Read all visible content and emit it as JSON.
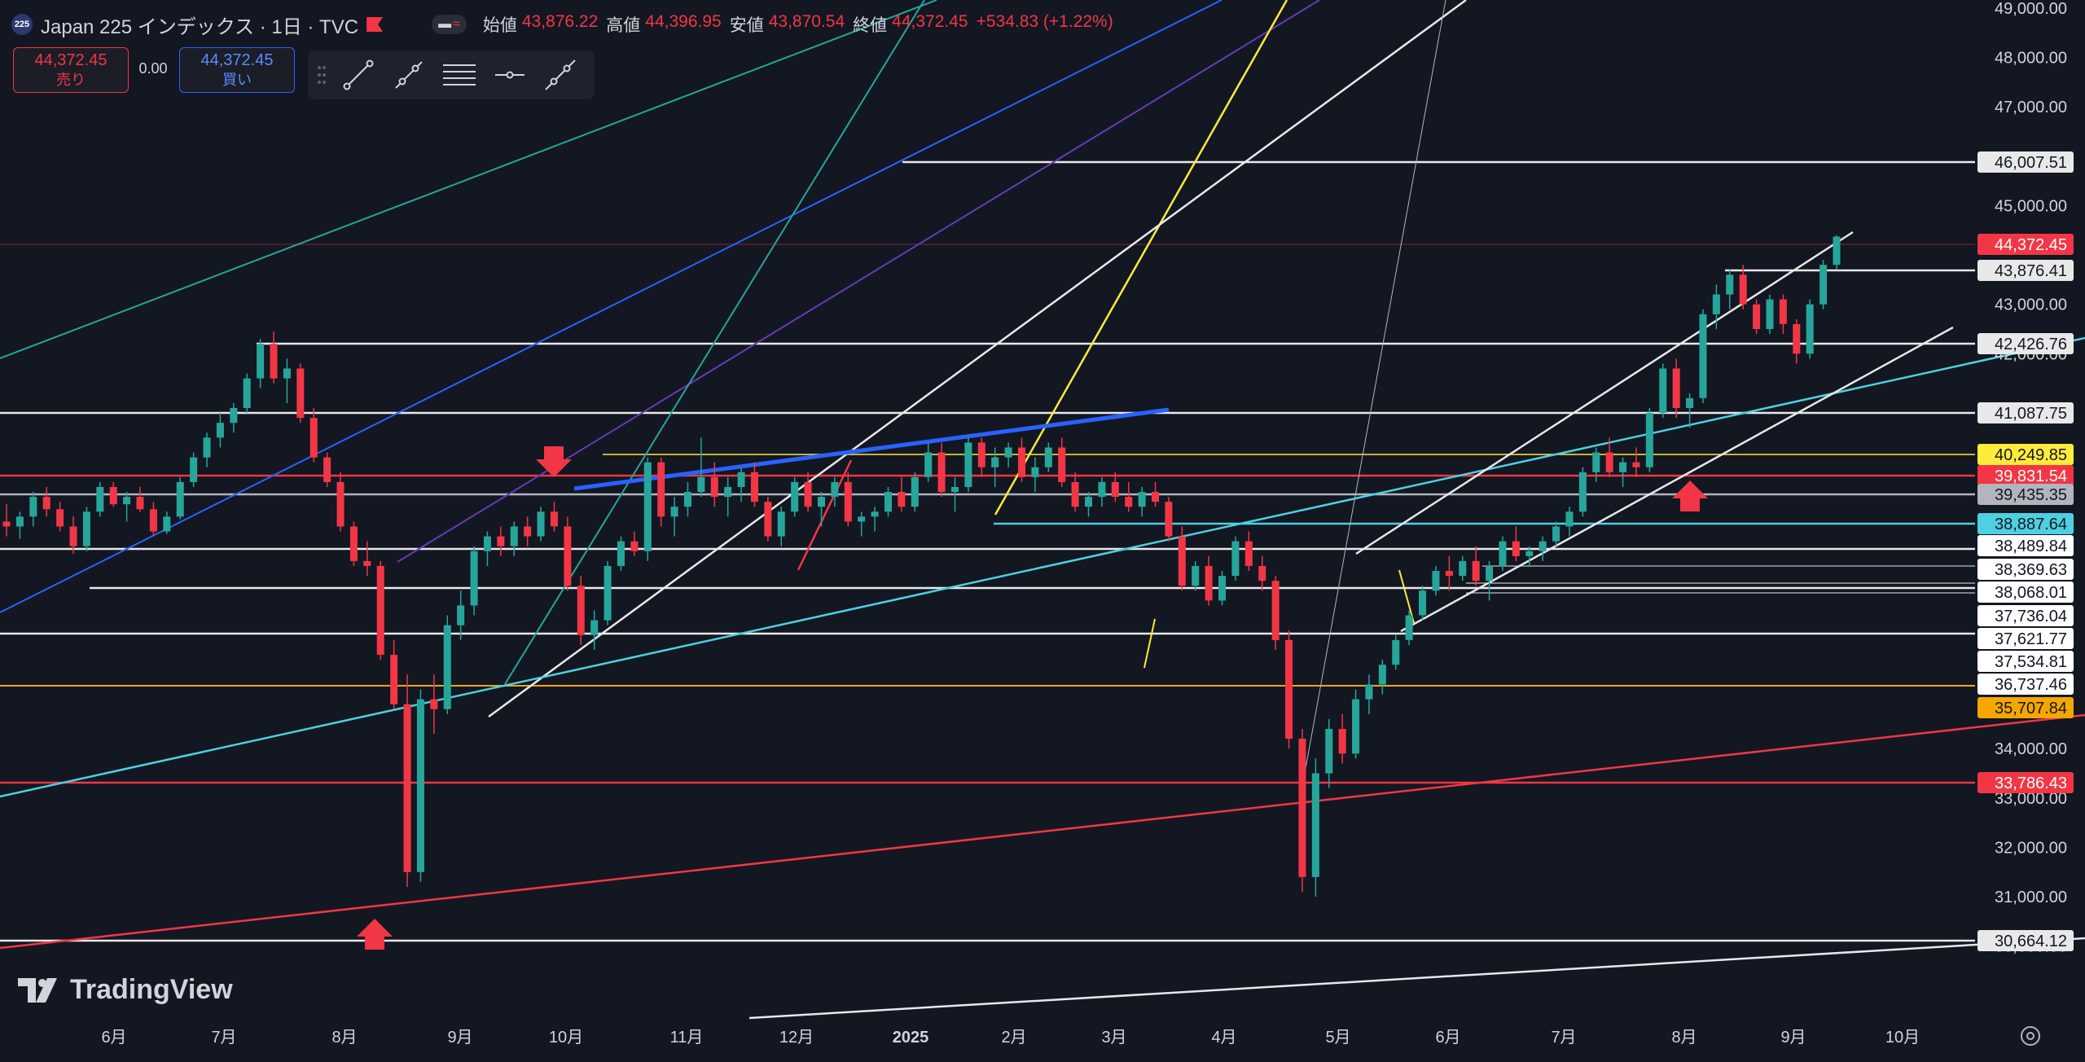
{
  "header": {
    "logo_text": "225",
    "title": "Japan 225 インデックス · 1日 · TVC",
    "ohlc": [
      {
        "label": "始値",
        "value": "43,876.22"
      },
      {
        "label": "高値",
        "value": "44,396.95"
      },
      {
        "label": "安値",
        "value": "43,870.54"
      },
      {
        "label": "終値",
        "value": "44,372.45"
      },
      {
        "label": "",
        "value": "+534.83 (+1.22%)"
      }
    ]
  },
  "trade": {
    "sell_price": "44,372.45",
    "sell_label": "売り",
    "spread": "0.00",
    "buy_price": "44,372.45",
    "buy_label": "買い"
  },
  "toolbar": [
    "trend-line-icon",
    "ray-icon",
    "parallel-channel-icon",
    "horizontal-line-icon",
    "extended-line-icon"
  ],
  "watermark": "TradingView",
  "colors": {
    "background": "#131722",
    "up": "#26a69a",
    "down": "#f23645",
    "white_line": "#e8e8e8",
    "red_line": "#f23645",
    "orange_line": "#f7a600",
    "yellow_line": "#ffeb3b",
    "cyan_line": "#4dd0e1",
    "blue_line": "#2962ff",
    "teal_line": "#26a69a",
    "purple_line": "#673ab7"
  },
  "chart_data": {
    "type": "candlestick",
    "title": "Japan 225 インデックス · 1日 · TVC",
    "x_ticks": [
      "6月",
      "7月",
      "8月",
      "9月",
      "10月",
      "11月",
      "12月",
      "2025",
      "2月",
      "3月",
      "4月",
      "5月",
      "6月",
      "7月",
      "8月",
      "9月",
      "10月"
    ],
    "y_ticks": [
      "49,000.00",
      "48,000.00",
      "47,000.00",
      "45,000.00",
      "43,000.00",
      "42,000.00",
      "34,000.00",
      "33,000.00",
      "32,000.00",
      "31,000.00",
      "30,000.00"
    ],
    "ylim": [
      29500,
      49000
    ],
    "last_price": 44372.45,
    "price_labels": [
      {
        "value": "46,007.51",
        "style": "white"
      },
      {
        "value": "44,372.45",
        "style": "last"
      },
      {
        "value": "43,876.41",
        "style": "white"
      },
      {
        "value": "42,426.76",
        "style": "white"
      },
      {
        "value": "41,087.75",
        "style": "white"
      },
      {
        "value": "40,249.85",
        "style": "yellow"
      },
      {
        "value": "39,831.54",
        "style": "red"
      },
      {
        "value": "39,435.35",
        "style": "gray"
      },
      {
        "value": "38,887.64",
        "style": "cyan"
      },
      {
        "value": "38,489.84",
        "style": "plain"
      },
      {
        "value": "38,369.63",
        "style": "plain"
      },
      {
        "value": "38,068.01",
        "style": "plain"
      },
      {
        "value": "37,736.04",
        "style": "plain"
      },
      {
        "value": "37,621.77",
        "style": "plain"
      },
      {
        "value": "37,534.81",
        "style": "plain"
      },
      {
        "value": "36,737.46",
        "style": "plain"
      },
      {
        "value": "35,707.84",
        "style": "orange"
      },
      {
        "value": "33,786.43",
        "style": "red"
      },
      {
        "value": "30,664.12",
        "style": "white"
      }
    ],
    "series": [
      {
        "name": "",
        "ohlc": [
          [
            38600,
            38950,
            38300,
            38500
          ],
          [
            38500,
            38800,
            38250,
            38700
          ],
          [
            38700,
            39200,
            38500,
            39100
          ],
          [
            39100,
            39300,
            38700,
            38850
          ],
          [
            38850,
            39000,
            38400,
            38500
          ],
          [
            38500,
            38700,
            37950,
            38100
          ],
          [
            38100,
            38900,
            38000,
            38800
          ],
          [
            38800,
            39400,
            38700,
            39300
          ],
          [
            39300,
            39400,
            38900,
            38950
          ],
          [
            38950,
            39200,
            38600,
            39100
          ],
          [
            39100,
            39300,
            38800,
            38850
          ],
          [
            38850,
            39000,
            38300,
            38400
          ],
          [
            38400,
            38800,
            38350,
            38700
          ],
          [
            38700,
            39500,
            38650,
            39400
          ],
          [
            39400,
            40000,
            39300,
            39900
          ],
          [
            39900,
            40400,
            39700,
            40300
          ],
          [
            40300,
            40800,
            40100,
            40600
          ],
          [
            40600,
            41000,
            40400,
            40900
          ],
          [
            40900,
            41600,
            40800,
            41500
          ],
          [
            41500,
            42300,
            41300,
            42200
          ],
          [
            42200,
            42450,
            41400,
            41500
          ],
          [
            41500,
            41900,
            41000,
            41700
          ],
          [
            41700,
            41800,
            40600,
            40700
          ],
          [
            40700,
            40900,
            39800,
            39900
          ],
          [
            39900,
            40000,
            39300,
            39400
          ],
          [
            39400,
            39600,
            38400,
            38500
          ],
          [
            38500,
            38600,
            37700,
            37800
          ],
          [
            37800,
            38200,
            37500,
            37700
          ],
          [
            37700,
            37800,
            35800,
            35900
          ],
          [
            35900,
            36200,
            34800,
            34900
          ],
          [
            34900,
            35500,
            31200,
            31500
          ],
          [
            31500,
            35200,
            31300,
            35000
          ],
          [
            35000,
            35500,
            34300,
            34800
          ],
          [
            34800,
            36700,
            34700,
            36500
          ],
          [
            36500,
            37200,
            36200,
            36900
          ],
          [
            36900,
            38100,
            36700,
            38000
          ],
          [
            38000,
            38400,
            37700,
            38300
          ],
          [
            38300,
            38500,
            37900,
            38100
          ],
          [
            38100,
            38600,
            37900,
            38500
          ],
          [
            38500,
            38700,
            38100,
            38300
          ],
          [
            38300,
            38900,
            38200,
            38800
          ],
          [
            38800,
            39000,
            38400,
            38500
          ],
          [
            38500,
            38700,
            37200,
            37300
          ],
          [
            37300,
            37500,
            36100,
            36300
          ],
          [
            36300,
            36800,
            36000,
            36600
          ],
          [
            36600,
            37800,
            36500,
            37700
          ],
          [
            37700,
            38300,
            37600,
            38200
          ],
          [
            38200,
            38400,
            37900,
            38000
          ],
          [
            38000,
            39900,
            37800,
            39800
          ],
          [
            39800,
            39900,
            38500,
            38700
          ],
          [
            38700,
            39100,
            38300,
            38900
          ],
          [
            38900,
            39400,
            38700,
            39200
          ],
          [
            39200,
            40300,
            39100,
            39500
          ],
          [
            39500,
            39800,
            38900,
            39100
          ],
          [
            39100,
            39500,
            38700,
            39300
          ],
          [
            39300,
            39700,
            39000,
            39600
          ],
          [
            39600,
            39800,
            38900,
            39000
          ],
          [
            39000,
            39100,
            38200,
            38300
          ],
          [
            38300,
            38900,
            38100,
            38800
          ],
          [
            38800,
            39500,
            38700,
            39400
          ],
          [
            39400,
            39600,
            38800,
            38900
          ],
          [
            38900,
            39200,
            38500,
            39100
          ],
          [
            39100,
            39500,
            38900,
            39400
          ],
          [
            39400,
            39600,
            38500,
            38600
          ],
          [
            38600,
            38800,
            38300,
            38700
          ],
          [
            38700,
            38900,
            38400,
            38800
          ],
          [
            38800,
            39300,
            38700,
            39200
          ],
          [
            39200,
            39500,
            38800,
            38900
          ],
          [
            38900,
            39600,
            38800,
            39500
          ],
          [
            39500,
            40200,
            39400,
            40000
          ],
          [
            40000,
            40200,
            39100,
            39200
          ],
          [
            39200,
            39500,
            38800,
            39300
          ],
          [
            39300,
            40300,
            39200,
            40200
          ],
          [
            40200,
            40300,
            39500,
            39700
          ],
          [
            39700,
            40100,
            39300,
            39900
          ],
          [
            39900,
            40200,
            39700,
            40100
          ],
          [
            40100,
            40300,
            39400,
            39500
          ],
          [
            39500,
            39900,
            39200,
            39700
          ],
          [
            39700,
            40200,
            39600,
            40100
          ],
          [
            40100,
            40300,
            39300,
            39400
          ],
          [
            39400,
            39600,
            38800,
            38900
          ],
          [
            38900,
            39200,
            38700,
            39100
          ],
          [
            39100,
            39500,
            38900,
            39400
          ],
          [
            39400,
            39600,
            39000,
            39100
          ],
          [
            39100,
            39400,
            38800,
            38900
          ],
          [
            38900,
            39300,
            38700,
            39200
          ],
          [
            39200,
            39400,
            38900,
            39000
          ],
          [
            39000,
            39100,
            38200,
            38300
          ],
          [
            38300,
            38500,
            37200,
            37300
          ],
          [
            37300,
            37800,
            37200,
            37700
          ],
          [
            37700,
            37900,
            36900,
            37000
          ],
          [
            37000,
            37600,
            36900,
            37500
          ],
          [
            37500,
            38300,
            37400,
            38200
          ],
          [
            38200,
            38400,
            37600,
            37700
          ],
          [
            37700,
            37900,
            37200,
            37400
          ],
          [
            37400,
            37500,
            36000,
            36200
          ],
          [
            36200,
            36400,
            34000,
            34200
          ],
          [
            34200,
            34400,
            31100,
            31400
          ],
          [
            31400,
            33800,
            31000,
            33500
          ],
          [
            33500,
            34600,
            33200,
            34400
          ],
          [
            34400,
            34700,
            33700,
            33900
          ],
          [
            33900,
            35200,
            33800,
            35000
          ],
          [
            35000,
            35500,
            34700,
            35300
          ],
          [
            35300,
            35800,
            35100,
            35700
          ],
          [
            35700,
            36300,
            35600,
            36200
          ],
          [
            36200,
            36800,
            36100,
            36700
          ],
          [
            36700,
            37300,
            36600,
            37200
          ],
          [
            37200,
            37700,
            37100,
            37600
          ],
          [
            37600,
            37900,
            37200,
            37500
          ],
          [
            37500,
            37900,
            37400,
            37800
          ],
          [
            37800,
            38100,
            37300,
            37400
          ],
          [
            37400,
            37800,
            37000,
            37700
          ],
          [
            37700,
            38300,
            37600,
            38200
          ],
          [
            38200,
            38500,
            37800,
            37900
          ],
          [
            37900,
            38100,
            37700,
            38000
          ],
          [
            38000,
            38300,
            37800,
            38200
          ],
          [
            38200,
            38600,
            38100,
            38500
          ],
          [
            38500,
            38900,
            38300,
            38800
          ],
          [
            38800,
            39700,
            38700,
            39600
          ],
          [
            39600,
            40100,
            39400,
            40000
          ],
          [
            40000,
            40300,
            39500,
            39600
          ],
          [
            39600,
            39900,
            39300,
            39800
          ],
          [
            39800,
            40100,
            39500,
            39700
          ],
          [
            39700,
            40900,
            39600,
            40800
          ],
          [
            40800,
            41800,
            40700,
            41700
          ],
          [
            41700,
            41900,
            40700,
            40900
          ],
          [
            40900,
            41200,
            40500,
            41100
          ],
          [
            41100,
            42900,
            41000,
            42800
          ],
          [
            42800,
            43400,
            42500,
            43200
          ],
          [
            43200,
            43700,
            42900,
            43600
          ],
          [
            43600,
            43800,
            42900,
            43000
          ],
          [
            43000,
            43100,
            42400,
            42500
          ],
          [
            42500,
            43200,
            42400,
            43100
          ],
          [
            43100,
            43200,
            42400,
            42600
          ],
          [
            42600,
            42700,
            41800,
            42000
          ],
          [
            42000,
            43100,
            41900,
            43000
          ],
          [
            43000,
            43900,
            42900,
            43800
          ],
          [
            43800,
            44400,
            43700,
            44372
          ]
        ]
      }
    ],
    "annotations": [
      "red down arrow",
      "red up arrow",
      "red up arrow"
    ]
  }
}
